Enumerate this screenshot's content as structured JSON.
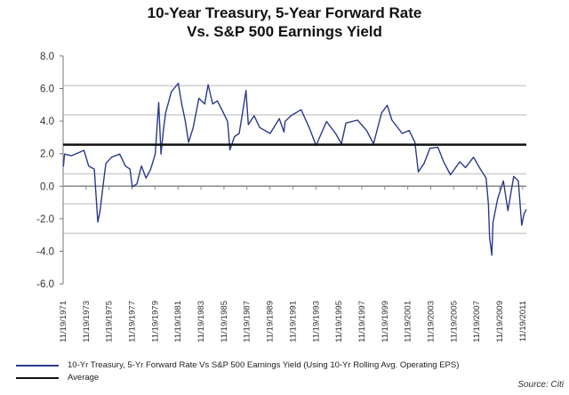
{
  "chart_data": {
    "type": "line",
    "title": "10-Year Treasury, 5-Year Forward Rate",
    "subtitle": "Vs. S&P 500 Earnings Yield",
    "xlabel": "",
    "ylabel": "",
    "ylim": [
      -6,
      8
    ],
    "xlim": [
      1971.88,
      2012.2
    ],
    "y_ticks": [
      "8.0",
      "6.0",
      "4.0",
      "2.0",
      "0.0",
      "-2.0",
      "-4.0",
      "-6.0"
    ],
    "y_tick_values": [
      8,
      6,
      4,
      2,
      0,
      -2,
      -4,
      -6
    ],
    "x_ticks": [
      "11/19/1971",
      "11/19/1973",
      "11/19/1975",
      "11/19/1977",
      "11/19/1979",
      "11/19/1981",
      "11/19/1983",
      "11/19/1985",
      "11/19/1987",
      "11/19/1989",
      "11/19/1991",
      "11/19/1993",
      "11/19/1995",
      "11/19/1997",
      "11/19/1999",
      "11/19/2001",
      "11/19/2003",
      "11/19/2005",
      "11/19/2007",
      "11/19/2009",
      "11/19/2011"
    ],
    "grid": true,
    "legend_placement": "bottom",
    "series": [
      {
        "name": "10-Yr Treasury, 5-Yr Forward Rate Vs S&P 500 Earnings Yield (Using 10-Yr Rolling Avg. Operating EPS)",
        "color": "#2b3a8c",
        "x": [
          1971.9,
          1972.0,
          1972.6,
          1973.7,
          1974.1,
          1974.6,
          1974.7,
          1974.9,
          1975.1,
          1975.4,
          1975.6,
          1976.1,
          1976.8,
          1977.3,
          1977.7,
          1977.9,
          1978.3,
          1978.7,
          1979.1,
          1979.5,
          1979.9,
          1980.2,
          1980.4,
          1980.6,
          1980.8,
          1981.3,
          1981.9,
          1982.2,
          1982.5,
          1982.8,
          1983.2,
          1983.7,
          1984.2,
          1984.5,
          1984.9,
          1985.3,
          1985.7,
          1986.2,
          1986.4,
          1986.8,
          1987.2,
          1987.5,
          1987.8,
          1988.0,
          1988.5,
          1989.0,
          1989.9,
          1990.7,
          1991.1,
          1991.2,
          1991.7,
          1992.6,
          1993.3,
          1993.9,
          1994.8,
          1995.6,
          1996.1,
          1996.5,
          1997.5,
          1998.3,
          1998.9,
          1999.6,
          2000.1,
          2000.5,
          2001.4,
          2002.0,
          2002.5,
          2002.8,
          2003.3,
          2003.8,
          2004.5,
          2005.0,
          2005.6,
          2006.4,
          2006.9,
          2007.6,
          2008.2,
          2008.7,
          2008.9,
          2009.0,
          2009.2,
          2009.3,
          2009.7,
          2010.2,
          2010.6,
          2011.1,
          2011.5,
          2011.8,
          2012.0,
          2012.2
        ],
        "y": [
          1.2,
          1.97,
          1.87,
          2.2,
          1.24,
          1.05,
          -0.04,
          -2.2,
          -1.5,
          0.3,
          1.4,
          1.78,
          1.97,
          1.24,
          1.05,
          -0.04,
          0.14,
          1.24,
          0.5,
          1.05,
          1.97,
          5.15,
          1.97,
          3.4,
          4.5,
          5.79,
          6.33,
          5.05,
          4.06,
          2.7,
          3.6,
          5.4,
          5.05,
          6.24,
          5.05,
          5.24,
          4.7,
          3.97,
          2.23,
          3.05,
          3.24,
          4.5,
          5.88,
          3.78,
          4.33,
          3.6,
          3.24,
          4.15,
          3.33,
          3.97,
          4.33,
          4.7,
          3.6,
          2.5,
          3.97,
          3.24,
          2.6,
          3.88,
          4.06,
          3.42,
          2.6,
          4.5,
          4.97,
          4.06,
          3.24,
          3.42,
          2.7,
          0.88,
          1.4,
          2.33,
          2.4,
          1.5,
          0.7,
          1.5,
          1.14,
          1.78,
          1.05,
          0.5,
          -1.14,
          -3.15,
          -4.24,
          -2.24,
          -0.78,
          0.33,
          -1.5,
          0.6,
          0.33,
          -2.4,
          -1.7,
          -1.42
        ]
      },
      {
        "name": "Average",
        "color": "#111111",
        "x": [
          1971.88,
          2012.2
        ],
        "y": [
          2.55,
          2.55
        ]
      }
    ],
    "annotations": [
      "Source: Citi"
    ]
  }
}
